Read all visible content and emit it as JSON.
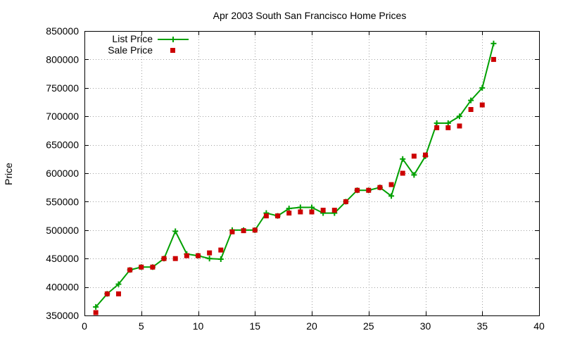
{
  "chart_data": {
    "type": "line",
    "title": "Apr 2003 South San Francisco Home Prices",
    "xlabel": "",
    "ylabel": "Price",
    "xlim": [
      0,
      40
    ],
    "ylim": [
      350000,
      850000
    ],
    "xticks": [
      0,
      5,
      10,
      15,
      20,
      25,
      30,
      35,
      40
    ],
    "yticks": [
      350000,
      400000,
      450000,
      500000,
      550000,
      600000,
      650000,
      700000,
      750000,
      800000,
      850000
    ],
    "grid": true,
    "legend_position": "top-left",
    "series": [
      {
        "name": "List Price",
        "style": "line+cross",
        "color": "#00a000",
        "x": [
          1,
          2,
          3,
          4,
          5,
          6,
          7,
          8,
          9,
          10,
          11,
          12,
          13,
          14,
          15,
          16,
          17,
          18,
          19,
          20,
          21,
          22,
          23,
          24,
          25,
          26,
          27,
          28,
          29,
          30,
          31,
          32,
          33,
          34,
          35,
          36
        ],
        "y": [
          365000,
          388000,
          405000,
          430000,
          435000,
          435000,
          450000,
          498000,
          458000,
          455000,
          450000,
          449000,
          500000,
          500000,
          500000,
          530000,
          525000,
          538000,
          540000,
          540000,
          530000,
          530000,
          550000,
          570000,
          570000,
          575000,
          560000,
          625000,
          597000,
          630000,
          688000,
          688000,
          700000,
          728000,
          750000,
          828000
        ]
      },
      {
        "name": "Sale Price",
        "style": "square",
        "color": "#cc0000",
        "x": [
          1,
          2,
          3,
          4,
          5,
          6,
          7,
          8,
          9,
          10,
          11,
          12,
          13,
          14,
          15,
          16,
          17,
          18,
          19,
          20,
          21,
          22,
          23,
          24,
          25,
          26,
          27,
          28,
          29,
          30,
          31,
          32,
          33,
          34,
          35,
          36
        ],
        "y": [
          355000,
          388000,
          388000,
          430000,
          435000,
          435000,
          450000,
          450000,
          455000,
          455000,
          460000,
          465000,
          497000,
          499000,
          500000,
          525000,
          525000,
          530000,
          532000,
          532000,
          535000,
          535000,
          550000,
          570000,
          570000,
          575000,
          580000,
          600000,
          630000,
          632000,
          680000,
          680000,
          683000,
          712000,
          720000,
          800000
        ]
      }
    ]
  }
}
